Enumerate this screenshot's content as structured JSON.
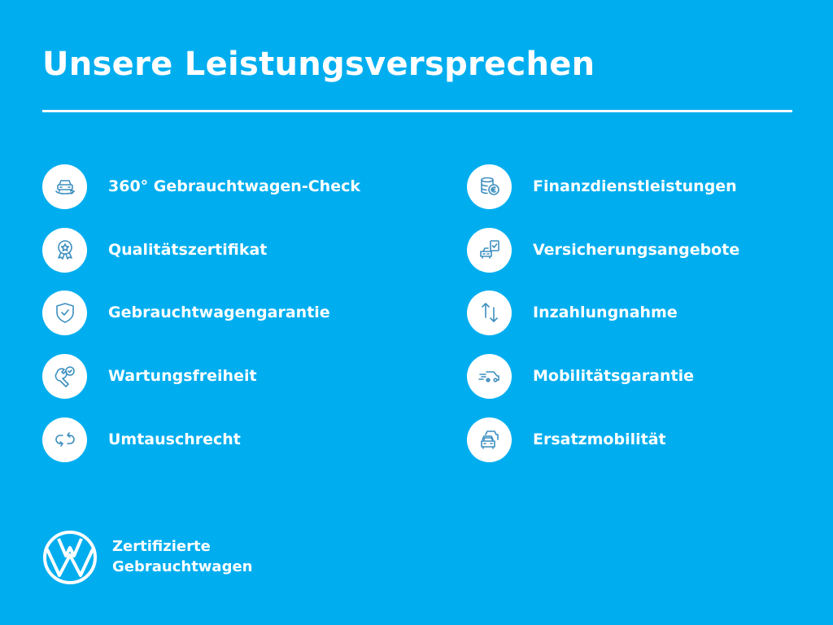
{
  "title": "Unsere Leistungsversprechen",
  "colors": {
    "background": "#00aeef",
    "foreground": "#ffffff",
    "icon_stroke": "#3d8fbf"
  },
  "left_column": [
    {
      "label": "360° Gebrauchtwagen-Check",
      "icon": "car-360-icon"
    },
    {
      "label": "Qualitätszertifikat",
      "icon": "award-ribbon-icon"
    },
    {
      "label": "Gebrauchtwagengarantie",
      "icon": "shield-check-icon"
    },
    {
      "label": "Wartungsfreiheit",
      "icon": "wrench-check-icon"
    },
    {
      "label": "Umtauschrecht",
      "icon": "exchange-arrows-icon"
    }
  ],
  "right_column": [
    {
      "label": "Finanzdienstleistungen",
      "icon": "coins-euro-icon"
    },
    {
      "label": "Versicherungsangebote",
      "icon": "car-document-icon"
    },
    {
      "label": "Inzahlungnahme",
      "icon": "up-down-arrows-icon"
    },
    {
      "label": "Mobilitätsgarantie",
      "icon": "moving-car-icon"
    },
    {
      "label": "Ersatzmobilität",
      "icon": "cars-stack-icon"
    }
  ],
  "footer": {
    "logo": "vw-logo",
    "line1": "Zertifizierte",
    "line2": "Gebrauchtwagen"
  }
}
